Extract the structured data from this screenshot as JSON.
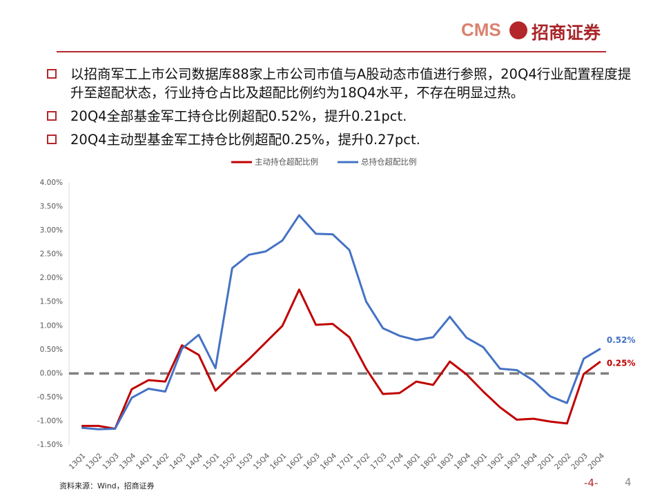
{
  "header": {
    "logo": "CMS",
    "brand": "招商证券"
  },
  "bullets": [
    "以招商军工上市公司数据库88家上市公司市值与A股动态市值进行参照，20Q4行业配置程度提升至超配状态，行业持仓占比及超配比例约为18Q4水平，不存在明显过热。",
    "20Q4全部基金军工持仓比例超配0.52%，提升0.21pct.",
    "20Q4主动型基金军工持仓比例超配0.25%，提升0.27pct."
  ],
  "source": "资料来源：Wind，招商证券",
  "page_label": "-4-",
  "page_number": "4",
  "chart_data": {
    "type": "line",
    "categories": [
      "13Q1",
      "13Q2",
      "13Q3",
      "13Q4",
      "14Q1",
      "14Q2",
      "14Q3",
      "14Q4",
      "15Q1",
      "15Q2",
      "15Q3",
      "15Q4",
      "16Q1",
      "16Q2",
      "16Q3",
      "16Q4",
      "17Q1",
      "17Q2",
      "17Q3",
      "17Q4",
      "18Q1",
      "18Q2",
      "18Q3",
      "18Q4",
      "19Q1",
      "19Q2",
      "19Q3",
      "19Q4",
      "20Q1",
      "20Q2",
      "20Q3",
      "20Q4"
    ],
    "series": [
      {
        "name": "主动持仓超配比例",
        "color": "#c00000",
        "values": [
          -1.1,
          -1.1,
          -1.16,
          -0.33,
          -0.14,
          -0.17,
          0.59,
          0.39,
          -0.36,
          -0.02,
          0.3,
          0.65,
          1.0,
          1.76,
          1.02,
          1.04,
          0.76,
          0.1,
          -0.43,
          -0.41,
          -0.17,
          -0.24,
          0.25,
          -0.02,
          -0.38,
          -0.71,
          -0.97,
          -0.95,
          -1.01,
          -1.05,
          -0.01,
          0.25
        ],
        "value_labels": [
          null,
          null,
          null,
          null,
          null,
          null,
          null,
          null,
          null,
          null,
          null,
          null,
          null,
          null,
          null,
          null,
          null,
          null,
          null,
          null,
          null,
          null,
          null,
          null,
          null,
          null,
          null,
          null,
          null,
          null,
          null,
          "0.25%"
        ]
      },
      {
        "name": "总持仓超配比例",
        "color": "#4472c4",
        "values": [
          -1.14,
          -1.17,
          -1.16,
          -0.51,
          -0.32,
          -0.38,
          0.52,
          0.81,
          0.11,
          2.21,
          2.49,
          2.56,
          2.79,
          3.32,
          2.93,
          2.92,
          2.59,
          1.51,
          0.95,
          0.79,
          0.7,
          0.76,
          1.19,
          0.75,
          0.55,
          0.1,
          0.07,
          -0.15,
          -0.48,
          -0.62,
          0.31,
          0.52
        ],
        "value_labels": [
          null,
          null,
          null,
          null,
          null,
          null,
          null,
          null,
          null,
          null,
          null,
          null,
          null,
          null,
          null,
          null,
          null,
          null,
          null,
          null,
          null,
          null,
          null,
          null,
          null,
          null,
          null,
          null,
          null,
          null,
          null,
          "0.52%"
        ]
      }
    ],
    "ylim": [
      -1.5,
      4
    ],
    "yticks": [
      {
        "value": -1.5,
        "label": "-1.50%"
      },
      {
        "value": -1,
        "label": "-1.00%"
      },
      {
        "value": -0.5,
        "label": "-0.50%"
      },
      {
        "value": 0,
        "label": "0.00%"
      },
      {
        "value": 0.5,
        "label": "0.50%"
      },
      {
        "value": 1,
        "label": "1.00%"
      },
      {
        "value": 1.5,
        "label": "1.50%"
      },
      {
        "value": 2,
        "label": "2.00%"
      },
      {
        "value": 2.5,
        "label": "2.50%"
      },
      {
        "value": 3,
        "label": "3.00%"
      },
      {
        "value": 3.5,
        "label": "3.50%"
      },
      {
        "value": 4,
        "label": "4.00%"
      }
    ],
    "grid": false,
    "zero_line": true,
    "legend": "top"
  }
}
